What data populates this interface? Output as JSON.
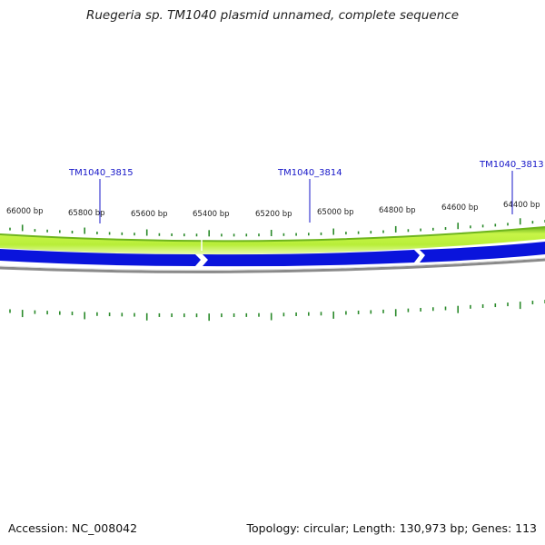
{
  "title": "Ruegeria sp. TM1040 plasmid unnamed, complete sequence",
  "footer": {
    "accession": "Accession: NC_008042",
    "summary": "Topology: circular; Length: 130,973 bp; Genes: 113"
  },
  "genes": [
    {
      "name": "TM1040_3815",
      "position_bp": 65795
    },
    {
      "name": "TM1040_3814",
      "position_bp": 65105
    },
    {
      "name": "TM1040_3813",
      "position_bp": 64400
    }
  ],
  "scale_labels": [
    "66000 bp",
    "65800 bp",
    "65600 bp",
    "65400 bp",
    "65200 bp",
    "65000 bp",
    "64800 bp",
    "64600 bp",
    "64400 bp"
  ],
  "colors": {
    "gc_band": "#bff040",
    "gc_band_dark": "#6fb51e",
    "cds": "#0a14dc",
    "backbone": "#8a8a8a",
    "ticks": "#2a8a2a",
    "gene_label": "#1515c8"
  }
}
